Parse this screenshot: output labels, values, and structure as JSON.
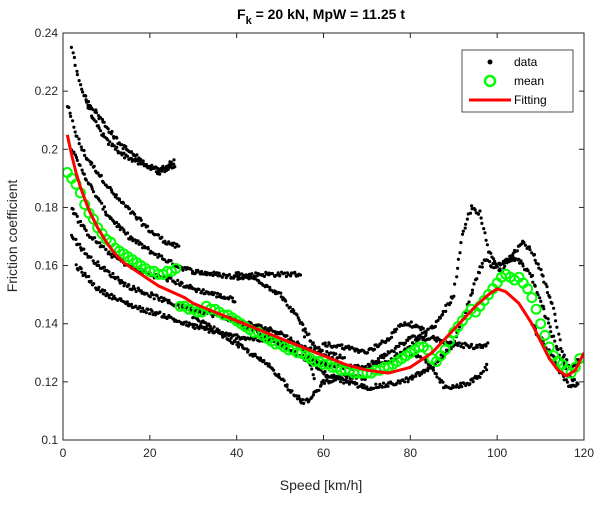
{
  "chart_data": {
    "type": "scatter",
    "title_main": "F",
    "title_sub": "k",
    "title_rest": " = 20 kN, MpW = 11.25 t",
    "title": "Fk = 20 kN, MpW = 11.25 t",
    "xlabel": "Speed [km/h]",
    "ylabel": "Friction coefficient",
    "xlim": [
      0,
      120
    ],
    "ylim": [
      0.1,
      0.24
    ],
    "xticks": [
      0,
      20,
      40,
      60,
      80,
      100,
      120
    ],
    "yticks": [
      0.1,
      0.12,
      0.14,
      0.16,
      0.18,
      0.2,
      0.22,
      0.24
    ],
    "legend": {
      "position": "top-right",
      "entries": [
        {
          "label": "data",
          "color": "#000000",
          "marker": "dot"
        },
        {
          "label": "mean",
          "color": "#00ff00",
          "marker": "circle"
        },
        {
          "label": "Fitting",
          "color": "#ff0000",
          "marker": "line"
        }
      ]
    },
    "series": [
      {
        "name": "data (trend segments)",
        "color": "#000000",
        "segments": [
          [
            [
              1,
              0.215
            ],
            [
              3,
              0.205
            ],
            [
              5,
              0.198
            ],
            [
              8,
              0.192
            ],
            [
              12,
              0.184
            ],
            [
              16,
              0.178
            ],
            [
              20,
              0.172
            ],
            [
              24,
              0.168
            ],
            [
              27,
              0.166
            ]
          ],
          [
            [
              2,
              0.235
            ],
            [
              4,
              0.222
            ],
            [
              7,
              0.21
            ],
            [
              10,
              0.203
            ],
            [
              14,
              0.198
            ],
            [
              18,
              0.195
            ],
            [
              22,
              0.193
            ],
            [
              26,
              0.196
            ]
          ],
          [
            [
              5,
              0.218
            ],
            [
              9,
              0.21
            ],
            [
              13,
              0.202
            ],
            [
              18,
              0.196
            ],
            [
              22,
              0.192
            ],
            [
              26,
              0.195
            ]
          ],
          [
            [
              2,
              0.2
            ],
            [
              6,
              0.188
            ],
            [
              10,
              0.178
            ],
            [
              15,
              0.17
            ],
            [
              20,
              0.165
            ],
            [
              26,
              0.16
            ],
            [
              30,
              0.158
            ],
            [
              35,
              0.157
            ],
            [
              40,
              0.156
            ],
            [
              45,
              0.157
            ],
            [
              50,
              0.157
            ],
            [
              55,
              0.157
            ]
          ],
          [
            [
              2,
              0.18
            ],
            [
              5,
              0.172
            ],
            [
              10,
              0.165
            ],
            [
              15,
              0.16
            ],
            [
              20,
              0.157
            ],
            [
              25,
              0.155
            ],
            [
              30,
              0.152
            ],
            [
              35,
              0.15
            ],
            [
              40,
              0.148
            ]
          ],
          [
            [
              2,
              0.17
            ],
            [
              6,
              0.163
            ],
            [
              10,
              0.158
            ],
            [
              15,
              0.153
            ],
            [
              20,
              0.15
            ],
            [
              25,
              0.147
            ],
            [
              30,
              0.145
            ],
            [
              35,
              0.143
            ],
            [
              40,
              0.141
            ],
            [
              45,
              0.139
            ],
            [
              50,
              0.137
            ],
            [
              55,
              0.132
            ],
            [
              60,
              0.13
            ],
            [
              65,
              0.128
            ]
          ],
          [
            [
              3,
              0.16
            ],
            [
              8,
              0.152
            ],
            [
              13,
              0.148
            ],
            [
              18,
              0.145
            ],
            [
              23,
              0.143
            ],
            [
              28,
              0.14
            ],
            [
              33,
              0.138
            ],
            [
              38,
              0.136
            ],
            [
              43,
              0.135
            ],
            [
              48,
              0.134
            ],
            [
              52,
              0.133
            ]
          ],
          [
            [
              40,
              0.157
            ],
            [
              45,
              0.155
            ],
            [
              50,
              0.15
            ],
            [
              55,
              0.14
            ],
            [
              58,
              0.132
            ],
            [
              60,
              0.13
            ]
          ],
          [
            [
              30,
              0.142
            ],
            [
              35,
              0.138
            ],
            [
              40,
              0.133
            ],
            [
              45,
              0.128
            ],
            [
              48,
              0.125
            ],
            [
              52,
              0.118
            ],
            [
              55,
              0.113
            ],
            [
              57,
              0.114
            ],
            [
              60,
              0.12
            ],
            [
              65,
              0.122
            ],
            [
              70,
              0.121
            ]
          ],
          [
            [
              40,
              0.14
            ],
            [
              45,
              0.137
            ],
            [
              50,
              0.133
            ],
            [
              55,
              0.129
            ],
            [
              60,
              0.126
            ],
            [
              65,
              0.125
            ],
            [
              70,
              0.125
            ],
            [
              75,
              0.127
            ],
            [
              80,
              0.132
            ],
            [
              82,
              0.135
            ],
            [
              86,
              0.14
            ],
            [
              90,
              0.15
            ],
            [
              92,
              0.17
            ],
            [
              94,
              0.18
            ],
            [
              96,
              0.178
            ],
            [
              98,
              0.165
            ],
            [
              100,
              0.16
            ],
            [
              102,
              0.162
            ],
            [
              104,
              0.165
            ],
            [
              106,
              0.168
            ],
            [
              108,
              0.165
            ],
            [
              110,
              0.158
            ],
            [
              113,
              0.145
            ],
            [
              115,
              0.13
            ],
            [
              117,
              0.125
            ],
            [
              119,
              0.128
            ]
          ],
          [
            [
              55,
              0.129
            ],
            [
              60,
              0.123
            ],
            [
              65,
              0.12
            ],
            [
              70,
              0.118
            ],
            [
              75,
              0.119
            ],
            [
              80,
              0.121
            ],
            [
              85,
              0.125
            ],
            [
              90,
              0.133
            ],
            [
              93,
              0.145
            ],
            [
              95,
              0.155
            ],
            [
              97,
              0.162
            ],
            [
              99,
              0.16
            ],
            [
              101,
              0.158
            ],
            [
              103,
              0.162
            ],
            [
              105,
              0.162
            ],
            [
              108,
              0.156
            ],
            [
              110,
              0.148
            ],
            [
              113,
              0.135
            ],
            [
              116,
              0.123
            ],
            [
              118,
              0.12
            ]
          ],
          [
            [
              70,
              0.125
            ],
            [
              75,
              0.13
            ],
            [
              80,
              0.135
            ],
            [
              85,
              0.135
            ],
            [
              90,
              0.133
            ],
            [
              95,
              0.132
            ],
            [
              98,
              0.133
            ]
          ],
          [
            [
              80,
              0.13
            ],
            [
              84,
              0.127
            ],
            [
              86,
              0.122
            ],
            [
              88,
              0.118
            ],
            [
              90,
              0.118
            ],
            [
              92,
              0.119
            ],
            [
              94,
              0.12
            ],
            [
              96,
              0.122
            ],
            [
              98,
              0.126
            ]
          ],
          [
            [
              60,
              0.133
            ],
            [
              65,
              0.132
            ],
            [
              70,
              0.13
            ],
            [
              75,
              0.135
            ],
            [
              78,
              0.14
            ],
            [
              80,
              0.14
            ],
            [
              84,
              0.137
            ]
          ],
          [
            [
              108,
              0.14
            ],
            [
              110,
              0.135
            ],
            [
              113,
              0.128
            ],
            [
              115,
              0.122
            ],
            [
              117,
              0.118
            ],
            [
              119,
              0.12
            ]
          ],
          [
            [
              55,
              0.14
            ],
            [
              56,
              0.13
            ],
            [
              57,
              0.125
            ],
            [
              58,
              0.12
            ]
          ]
        ]
      },
      {
        "name": "mean",
        "color": "#00ff00",
        "x": [
          1,
          2,
          3,
          4,
          5,
          6,
          7,
          8,
          9,
          10,
          11,
          12,
          13,
          14,
          15,
          16,
          17,
          18,
          19,
          20,
          21,
          22,
          23,
          24,
          25,
          26,
          27,
          28,
          29,
          30,
          31,
          32,
          33,
          34,
          35,
          36,
          37,
          38,
          39,
          40,
          41,
          42,
          43,
          44,
          45,
          46,
          47,
          48,
          49,
          50,
          51,
          52,
          53,
          54,
          55,
          56,
          57,
          58,
          59,
          60,
          61,
          62,
          63,
          64,
          65,
          66,
          67,
          68,
          69,
          70,
          71,
          72,
          73,
          74,
          75,
          76,
          77,
          78,
          79,
          80,
          81,
          82,
          83,
          84,
          85,
          86,
          87,
          88,
          89,
          90,
          91,
          92,
          93,
          94,
          95,
          96,
          97,
          98,
          99,
          100,
          101,
          102,
          103,
          104,
          105,
          106,
          107,
          108,
          109,
          110,
          111,
          112,
          113,
          114,
          115,
          116,
          117,
          118,
          119
        ],
        "y": [
          0.192,
          0.19,
          0.188,
          0.185,
          0.181,
          0.178,
          0.176,
          0.173,
          0.171,
          0.169,
          0.168,
          0.166,
          0.165,
          0.164,
          0.163,
          0.162,
          0.161,
          0.16,
          0.159,
          0.158,
          0.158,
          0.157,
          0.157,
          0.158,
          0.158,
          0.159,
          0.146,
          0.146,
          0.145,
          0.145,
          0.144,
          0.144,
          0.146,
          0.145,
          0.145,
          0.144,
          0.143,
          0.143,
          0.142,
          0.141,
          0.14,
          0.139,
          0.138,
          0.137,
          0.137,
          0.136,
          0.135,
          0.134,
          0.133,
          0.133,
          0.132,
          0.131,
          0.131,
          0.13,
          0.13,
          0.129,
          0.128,
          0.127,
          0.127,
          0.126,
          0.126,
          0.125,
          0.125,
          0.124,
          0.124,
          0.124,
          0.123,
          0.123,
          0.123,
          0.123,
          0.123,
          0.124,
          0.124,
          0.125,
          0.125,
          0.126,
          0.127,
          0.128,
          0.129,
          0.13,
          0.131,
          0.132,
          0.132,
          0.131,
          0.128,
          0.127,
          0.129,
          0.131,
          0.134,
          0.137,
          0.139,
          0.141,
          0.143,
          0.145,
          0.144,
          0.146,
          0.148,
          0.15,
          0.152,
          0.154,
          0.156,
          0.157,
          0.156,
          0.155,
          0.156,
          0.154,
          0.152,
          0.149,
          0.145,
          0.14,
          0.136,
          0.132,
          0.129,
          0.127,
          0.126,
          0.124,
          0.123,
          0.125,
          0.128
        ]
      },
      {
        "name": "Fitting",
        "color": "#ff0000",
        "x": [
          1,
          2,
          3,
          4,
          5,
          6,
          8,
          10,
          12,
          14,
          16,
          18,
          20,
          22,
          25,
          28,
          30,
          35,
          40,
          45,
          50,
          55,
          60,
          65,
          70,
          75,
          80,
          85,
          90,
          95,
          98,
          100,
          102,
          105,
          108,
          110,
          112,
          114,
          116,
          118,
          120
        ],
        "y": [
          0.205,
          0.198,
          0.192,
          0.187,
          0.183,
          0.179,
          0.173,
          0.168,
          0.164,
          0.161,
          0.159,
          0.157,
          0.155,
          0.153,
          0.151,
          0.149,
          0.147,
          0.144,
          0.141,
          0.138,
          0.135,
          0.132,
          0.129,
          0.126,
          0.124,
          0.123,
          0.125,
          0.13,
          0.138,
          0.146,
          0.15,
          0.152,
          0.151,
          0.147,
          0.14,
          0.134,
          0.128,
          0.124,
          0.122,
          0.124,
          0.13
        ]
      }
    ]
  }
}
